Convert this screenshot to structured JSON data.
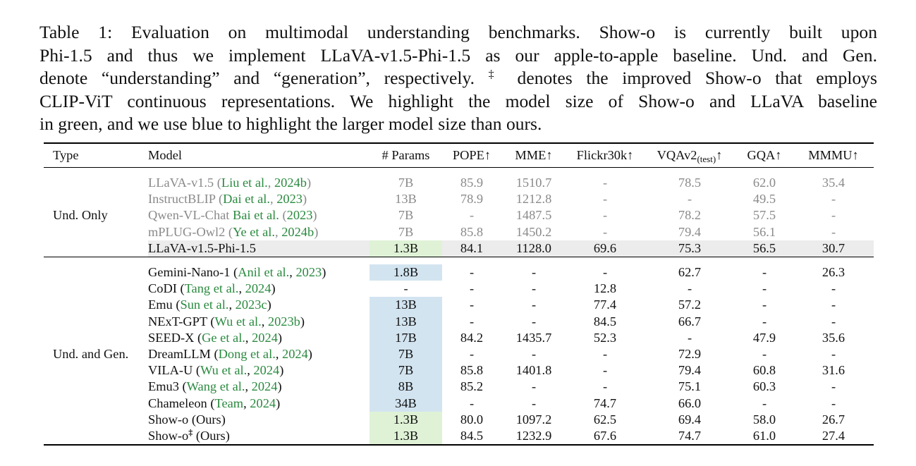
{
  "caption": {
    "lines": [
      "Table 1: Evaluation on multimodal understanding benchmarks. Show-o is currently built upon",
      "Phi-1.5 and thus we implement LLaVA-v1.5-Phi-1.5 as our apple-to-apple baseline. Und. and Gen.",
      "denote “understanding” and “generation”, respectively.",
      "‡",
      " denotes the improved Show-o that employs",
      "CLIP-ViT continuous representations. We highlight the model size of Show-o and LLaVA baseline",
      "in green, and we use blue to highlight the larger model size than ours."
    ]
  },
  "header": {
    "type": "Type",
    "model": "Model",
    "params": "# Params",
    "pope": "POPE↑",
    "mme": "MME↑",
    "flickr": "Flickr30k↑",
    "vqav2": "VQAv2",
    "vqav2_sub": "(test)",
    "vqav2_arrow": "↑",
    "gqa": "GQA↑",
    "mmmu": "MMMU↑"
  },
  "groups": {
    "und_only": "Und. Only",
    "und_gen": "Und. and Gen."
  },
  "rows": {
    "r1": {
      "name": "LLaVA-v1.5",
      "c_open": " (",
      "c_auth": "Liu et al.",
      "c_mid": ", ",
      "c_year": "2024b",
      "c_close": ")",
      "params": "7B",
      "pope": "85.9",
      "mme": "1510.7",
      "flickr": "-",
      "vqa": "78.5",
      "gqa": "62.0",
      "mmmu": "35.4"
    },
    "r2": {
      "name": "InstructBLIP",
      "c_open": " (",
      "c_auth": "Dai et al.",
      "c_mid": ", ",
      "c_year": "2023",
      "c_close": ")",
      "params": "13B",
      "pope": "78.9",
      "mme": "1212.8",
      "flickr": "-",
      "vqa": "-",
      "gqa": "49.5",
      "mmmu": "-"
    },
    "r3": {
      "name": "Qwen-VL-Chat ",
      "c_auth": "Bai et al.",
      "c_open": " (",
      "c_year": "2023",
      "c_close": ")",
      "params": "7B",
      "pope": "-",
      "mme": "1487.5",
      "flickr": "-",
      "vqa": "78.2",
      "gqa": "57.5",
      "mmmu": "-"
    },
    "r4": {
      "name": "mPLUG-Owl2",
      "c_open": " (",
      "c_auth": "Ye et al.",
      "c_mid": ", ",
      "c_year": "2024b",
      "c_close": ")",
      "params": "7B",
      "pope": "85.8",
      "mme": "1450.2",
      "flickr": "-",
      "vqa": "79.4",
      "gqa": "56.1",
      "mmmu": "-"
    },
    "r5": {
      "name": "LLaVA-v1.5-Phi-1.5",
      "params": "1.3B",
      "pope": "84.1",
      "mme": "1128.0",
      "flickr": "69.6",
      "vqa": "75.3",
      "gqa": "56.5",
      "mmmu": "30.7"
    },
    "r6": {
      "name": "Gemini-Nano-1",
      "c_open": " (",
      "c_auth": "Anil et al.",
      "c_mid": ", ",
      "c_year": "2023",
      "c_close": ")",
      "params": "1.8B",
      "pope": "-",
      "mme": "-",
      "flickr": "-",
      "vqa": "62.7",
      "gqa": "-",
      "mmmu": "26.3"
    },
    "r7": {
      "name": "CoDI",
      "c_open": " (",
      "c_auth": "Tang et al.",
      "c_mid": ", ",
      "c_year": "2024",
      "c_close": ")",
      "params": "-",
      "pope": "-",
      "mme": "-",
      "flickr": "12.8",
      "vqa": "-",
      "gqa": "-",
      "mmmu": "-"
    },
    "r8": {
      "name": "Emu",
      "c_open": " (",
      "c_auth": "Sun et al.",
      "c_mid": ", ",
      "c_year": "2023c",
      "c_close": ")",
      "params": "13B",
      "pope": "-",
      "mme": "-",
      "flickr": "77.4",
      "vqa": "57.2",
      "gqa": "-",
      "mmmu": "-"
    },
    "r9": {
      "name": "NExT-GPT",
      "c_open": " (",
      "c_auth": "Wu et al.",
      "c_mid": ", ",
      "c_year": "2023b",
      "c_close": ")",
      "params": "13B",
      "pope": "-",
      "mme": "-",
      "flickr": "84.5",
      "vqa": "66.7",
      "gqa": "-",
      "mmmu": "-"
    },
    "r10": {
      "name": "SEED-X",
      "c_open": " (",
      "c_auth": "Ge et al.",
      "c_mid": ", ",
      "c_year": "2024",
      "c_close": ")",
      "params": "17B",
      "pope": "84.2",
      "mme": "1435.7",
      "flickr": "52.3",
      "vqa": "-",
      "gqa": "47.9",
      "mmmu": "35.6"
    },
    "r11": {
      "name": "DreamLLM",
      "c_open": " (",
      "c_auth": "Dong et al.",
      "c_mid": ", ",
      "c_year": "2024",
      "c_close": ")",
      "params": "7B",
      "pope": "-",
      "mme": "-",
      "flickr": "-",
      "vqa": "72.9",
      "gqa": "-",
      "mmmu": "-"
    },
    "r12": {
      "name": "VILA-U",
      "c_open": " (",
      "c_auth": "Wu et al.",
      "c_mid": ", ",
      "c_year": "2024",
      "c_close": ")",
      "params": "7B",
      "pope": "85.8",
      "mme": "1401.8",
      "flickr": "-",
      "vqa": "79.4",
      "gqa": "60.8",
      "mmmu": "31.6"
    },
    "r13": {
      "name": "Emu3",
      "c_open": " (",
      "c_auth": "Wang et al.",
      "c_mid": ", ",
      "c_year": "2024",
      "c_close": ")",
      "params": "8B",
      "pope": "85.2",
      "mme": "-",
      "flickr": "-",
      "vqa": "75.1",
      "gqa": "60.3",
      "mmmu": "-"
    },
    "r14": {
      "name": "Chameleon",
      "c_open": " (",
      "c_auth": "Team",
      "c_mid": ", ",
      "c_year": "2024",
      "c_close": ")",
      "params": "34B",
      "pope": "-",
      "mme": "-",
      "flickr": "74.7",
      "vqa": "66.0",
      "gqa": "-",
      "mmmu": "-"
    },
    "r15": {
      "name": "Show-o (Ours)",
      "params": "1.3B",
      "pope": "80.0",
      "mme": "1097.2",
      "flickr": "62.5",
      "vqa": "69.4",
      "gqa": "58.0",
      "mmmu": "26.7"
    },
    "r16": {
      "name": "Show-o",
      "sup": "‡",
      "suffix": " (Ours)",
      "params": "1.3B",
      "pope": "84.5",
      "mme": "1232.9",
      "flickr": "67.6",
      "vqa": "74.7",
      "gqa": "61.0",
      "mmmu": "27.4"
    }
  },
  "colors": {
    "cite_green": "#2a8a3f",
    "highlight_green": "#dff2d6",
    "highlight_blue": "#d2e4f0",
    "baseline_row_gray": "#ececec",
    "muted_text": "#8a8a8a"
  }
}
